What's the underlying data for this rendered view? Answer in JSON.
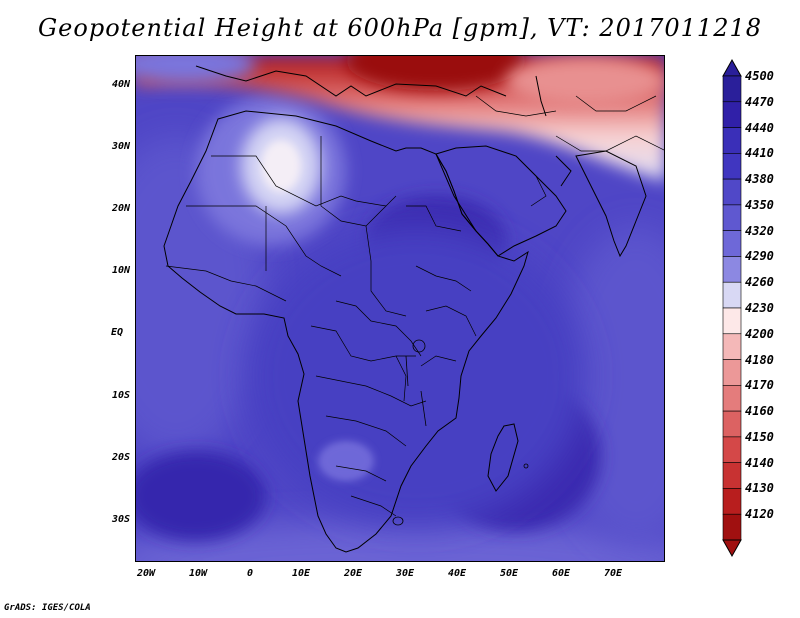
{
  "title": "Geopotential Height at 600hPa [gpm], VT: 2017011218",
  "credit": "GrADS: IGES/COLA",
  "map": {
    "projection": "lat-lon",
    "lon_range": [
      -25,
      80
    ],
    "lat_range": [
      -37,
      45
    ],
    "lat_labels": [
      {
        "lat": 40,
        "text": "40N"
      },
      {
        "lat": 30,
        "text": "30N"
      },
      {
        "lat": 20,
        "text": "20N"
      },
      {
        "lat": 10,
        "text": "10N"
      },
      {
        "lat": 0,
        "text": "EQ"
      },
      {
        "lat": -10,
        "text": "10S"
      },
      {
        "lat": -20,
        "text": "20S"
      },
      {
        "lat": -30,
        "text": "30S"
      }
    ],
    "lon_labels": [
      {
        "lon": -20,
        "text": "20W"
      },
      {
        "lon": -10,
        "text": "10W"
      },
      {
        "lon": 0,
        "text": "0"
      },
      {
        "lon": 10,
        "text": "10E"
      },
      {
        "lon": 20,
        "text": "20E"
      },
      {
        "lon": 30,
        "text": "30E"
      },
      {
        "lon": 40,
        "text": "40E"
      },
      {
        "lon": 50,
        "text": "50E"
      },
      {
        "lon": 60,
        "text": "60E"
      },
      {
        "lon": 70,
        "text": "70E"
      }
    ]
  },
  "colorbar": {
    "levels": [
      "4500",
      "4470",
      "4440",
      "4410",
      "4380",
      "4350",
      "4320",
      "4290",
      "4260",
      "4230",
      "4200",
      "4180",
      "4170",
      "4160",
      "4150",
      "4140",
      "4130",
      "4120"
    ],
    "colors": [
      "#2a1f9a",
      "#3020a8",
      "#3a2fb8",
      "#4036c0",
      "#5048c8",
      "#5f58d0",
      "#6e68d8",
      "#8c88e2",
      "#d8d8f4",
      "#fde8e8",
      "#f4b8b8",
      "#ec9898",
      "#e47c7c",
      "#dc6262",
      "#d44848",
      "#c83232",
      "#b81e1e",
      "#a01010"
    ]
  }
}
